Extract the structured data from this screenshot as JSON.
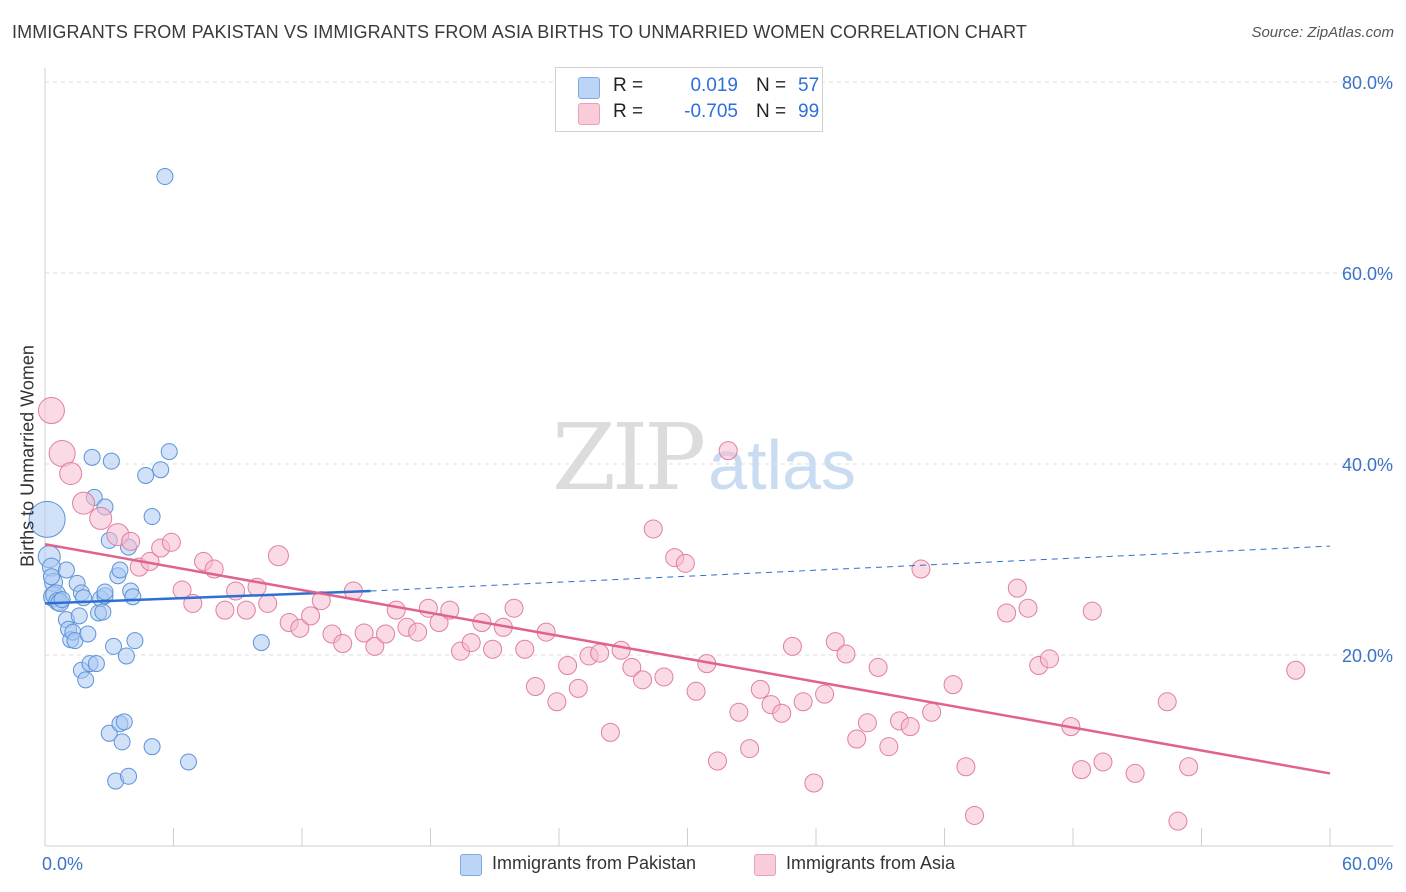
{
  "title": "IMMIGRANTS FROM PAKISTAN VS IMMIGRANTS FROM ASIA BIRTHS TO UNMARRIED WOMEN CORRELATION CHART",
  "source": "Source: ZipAtlas.com",
  "watermark": {
    "part1": "ZIP",
    "part2": "atlas"
  },
  "legend_top": [
    {
      "r_label": "R =",
      "r_value": "0.019",
      "n_label": "N =",
      "n_value": "57",
      "color": "#a9c8f2"
    },
    {
      "r_label": "R =",
      "r_value": "-0.705",
      "n_label": "N =",
      "n_value": "99",
      "color": "#f6bccd"
    }
  ],
  "colors": {
    "pakistan_fill": "#a9c8f2",
    "pakistan_stroke": "#5e93d8",
    "pakistan_line": "#2f6fcf",
    "asia_fill": "#f6bccd",
    "asia_stroke": "#e17fa0",
    "asia_line": "#e0628f",
    "tick_label": "#3b73c9",
    "grid": "#dcdcdc"
  },
  "chart_data": {
    "type": "scatter",
    "title": "IMMIGRANTS FROM PAKISTAN VS IMMIGRANTS FROM ASIA BIRTHS TO UNMARRIED WOMEN CORRELATION CHART",
    "xlabel": "",
    "ylabel": "Births to Unmarried Women",
    "xlim": [
      0,
      60
    ],
    "ylim": [
      0,
      82
    ],
    "x_tick_labels": [
      "0.0%",
      "60.0%"
    ],
    "y_ticks": [
      20,
      40,
      60,
      80
    ],
    "y_tick_labels": [
      "20.0%",
      "40.0%",
      "60.0%",
      "80.0%"
    ],
    "grid": "horizontal-dashed",
    "legend_position": "top-center",
    "series": [
      {
        "name": "Immigrants from Pakistan",
        "R": 0.019,
        "N": 57,
        "trend": {
          "x0": 0,
          "y0": 25.4,
          "x1": 15.2,
          "y1": 26.7,
          "dashed_to_x": 60,
          "dashed_to_y": 31.4
        },
        "points": [
          [
            0.1,
            34.2,
            18
          ],
          [
            0.2,
            30.3,
            11
          ],
          [
            0.3,
            29.2,
            9
          ],
          [
            0.4,
            27.6,
            9
          ],
          [
            0.4,
            26.1,
            10
          ],
          [
            0.5,
            26.3,
            10
          ],
          [
            0.6,
            25.6,
            9
          ],
          [
            0.7,
            25.5,
            9
          ],
          [
            0.8,
            25.8,
            8
          ],
          [
            1.0,
            28.9,
            8
          ],
          [
            1.0,
            23.7,
            8
          ],
          [
            1.1,
            22.7,
            8
          ],
          [
            1.2,
            21.6,
            8
          ],
          [
            1.3,
            22.4,
            8
          ],
          [
            1.4,
            21.5,
            8
          ],
          [
            1.5,
            27.5,
            8
          ],
          [
            1.6,
            24.1,
            8
          ],
          [
            1.7,
            26.5,
            8
          ],
          [
            1.7,
            18.4,
            8
          ],
          [
            1.8,
            26.0,
            8
          ],
          [
            1.9,
            17.4,
            8
          ],
          [
            2.0,
            22.2,
            8
          ],
          [
            2.1,
            19.1,
            8
          ],
          [
            2.2,
            40.7,
            8
          ],
          [
            2.3,
            36.5,
            8
          ],
          [
            2.4,
            19.1,
            8
          ],
          [
            2.5,
            24.4,
            8
          ],
          [
            2.6,
            25.9,
            8
          ],
          [
            2.7,
            24.5,
            8
          ],
          [
            2.8,
            26.2,
            8
          ],
          [
            2.8,
            26.6,
            8
          ],
          [
            2.8,
            35.5,
            8
          ],
          [
            3.0,
            11.8,
            8
          ],
          [
            3.0,
            32.0,
            8
          ],
          [
            3.1,
            40.3,
            8
          ],
          [
            3.2,
            20.9,
            8
          ],
          [
            3.3,
            6.8,
            8
          ],
          [
            3.4,
            28.3,
            8
          ],
          [
            3.5,
            28.9,
            8
          ],
          [
            3.5,
            12.8,
            8
          ],
          [
            3.6,
            10.9,
            8
          ],
          [
            3.7,
            13.0,
            8
          ],
          [
            3.8,
            19.9,
            8
          ],
          [
            3.9,
            31.3,
            8
          ],
          [
            3.9,
            7.3,
            8
          ],
          [
            4.0,
            26.7,
            8
          ],
          [
            4.1,
            26.1,
            8
          ],
          [
            4.2,
            21.5,
            8
          ],
          [
            4.7,
            38.8,
            8
          ],
          [
            5.0,
            34.5,
            8
          ],
          [
            5.0,
            10.4,
            8
          ],
          [
            5.4,
            39.4,
            8
          ],
          [
            5.6,
            70.1,
            8
          ],
          [
            5.8,
            41.3,
            8
          ],
          [
            6.7,
            8.8,
            8
          ],
          [
            10.1,
            21.3,
            8
          ],
          [
            0.3,
            28.2,
            8
          ]
        ]
      },
      {
        "name": "Immigrants from Asia",
        "R": -0.705,
        "N": 99,
        "trend": {
          "x0": 0,
          "y0": 31.6,
          "x1": 60,
          "y1": 7.6
        },
        "points": [
          [
            0.3,
            45.6,
            13
          ],
          [
            0.8,
            41.1,
            13
          ],
          [
            1.2,
            39.0,
            11
          ],
          [
            1.8,
            35.9,
            11
          ],
          [
            2.6,
            34.3,
            11
          ],
          [
            3.4,
            32.6,
            11
          ],
          [
            4.0,
            31.9,
            9
          ],
          [
            4.4,
            29.2,
            9
          ],
          [
            4.9,
            29.8,
            9
          ],
          [
            5.4,
            31.2,
            9
          ],
          [
            5.9,
            31.8,
            9
          ],
          [
            6.4,
            26.8,
            9
          ],
          [
            6.9,
            25.4,
            9
          ],
          [
            7.4,
            29.8,
            9
          ],
          [
            7.9,
            29.0,
            9
          ],
          [
            8.4,
            24.7,
            9
          ],
          [
            8.9,
            26.7,
            9
          ],
          [
            9.4,
            24.7,
            9
          ],
          [
            9.9,
            27.1,
            9
          ],
          [
            10.4,
            25.4,
            9
          ],
          [
            10.9,
            30.4,
            10
          ],
          [
            11.4,
            23.4,
            9
          ],
          [
            11.9,
            22.8,
            9
          ],
          [
            12.4,
            24.1,
            9
          ],
          [
            12.9,
            25.7,
            9
          ],
          [
            13.4,
            22.2,
            9
          ],
          [
            13.9,
            21.2,
            9
          ],
          [
            14.4,
            26.7,
            9
          ],
          [
            14.9,
            22.3,
            9
          ],
          [
            15.4,
            20.9,
            9
          ],
          [
            15.9,
            22.2,
            9
          ],
          [
            16.4,
            24.7,
            9
          ],
          [
            16.9,
            22.9,
            9
          ],
          [
            17.4,
            22.4,
            9
          ],
          [
            17.9,
            24.9,
            9
          ],
          [
            18.4,
            23.4,
            9
          ],
          [
            18.9,
            24.7,
            9
          ],
          [
            19.4,
            20.4,
            9
          ],
          [
            19.9,
            21.3,
            9
          ],
          [
            20.4,
            23.4,
            9
          ],
          [
            20.9,
            20.6,
            9
          ],
          [
            21.4,
            22.9,
            9
          ],
          [
            21.9,
            24.9,
            9
          ],
          [
            22.4,
            20.6,
            9
          ],
          [
            22.9,
            16.7,
            9
          ],
          [
            23.4,
            22.4,
            9
          ],
          [
            23.9,
            15.1,
            9
          ],
          [
            24.4,
            18.9,
            9
          ],
          [
            24.9,
            16.5,
            9
          ],
          [
            25.4,
            19.9,
            9
          ],
          [
            25.9,
            20.2,
            9
          ],
          [
            26.4,
            11.9,
            9
          ],
          [
            26.9,
            20.5,
            9
          ],
          [
            27.4,
            18.7,
            9
          ],
          [
            27.9,
            17.4,
            9
          ],
          [
            28.4,
            33.2,
            9
          ],
          [
            28.9,
            17.7,
            9
          ],
          [
            29.4,
            30.2,
            9
          ],
          [
            29.9,
            29.6,
            9
          ],
          [
            30.4,
            16.2,
            9
          ],
          [
            30.9,
            19.1,
            9
          ],
          [
            31.4,
            8.9,
            9
          ],
          [
            31.9,
            41.4,
            9
          ],
          [
            32.4,
            14.0,
            9
          ],
          [
            32.9,
            10.2,
            9
          ],
          [
            33.4,
            16.4,
            9
          ],
          [
            33.9,
            14.8,
            9
          ],
          [
            34.4,
            13.9,
            9
          ],
          [
            34.9,
            20.9,
            9
          ],
          [
            35.4,
            15.1,
            9
          ],
          [
            35.9,
            6.6,
            9
          ],
          [
            36.4,
            15.9,
            9
          ],
          [
            36.9,
            21.4,
            9
          ],
          [
            37.4,
            20.1,
            9
          ],
          [
            37.9,
            11.2,
            9
          ],
          [
            38.4,
            12.9,
            9
          ],
          [
            38.9,
            18.7,
            9
          ],
          [
            39.4,
            10.4,
            9
          ],
          [
            39.9,
            13.1,
            9
          ],
          [
            40.4,
            12.5,
            9
          ],
          [
            40.9,
            29.0,
            9
          ],
          [
            41.4,
            14.0,
            9
          ],
          [
            42.4,
            16.9,
            9
          ],
          [
            43.0,
            8.3,
            9
          ],
          [
            43.4,
            3.2,
            9
          ],
          [
            44.9,
            24.4,
            9
          ],
          [
            45.4,
            27.0,
            9
          ],
          [
            45.9,
            24.9,
            9
          ],
          [
            46.4,
            18.9,
            9
          ],
          [
            46.9,
            19.6,
            9
          ],
          [
            47.9,
            12.5,
            9
          ],
          [
            48.4,
            8.0,
            9
          ],
          [
            48.9,
            24.6,
            9
          ],
          [
            49.4,
            8.8,
            9
          ],
          [
            50.9,
            7.6,
            9
          ],
          [
            52.4,
            15.1,
            9
          ],
          [
            52.9,
            2.6,
            9
          ],
          [
            53.4,
            8.3,
            9
          ],
          [
            58.4,
            18.4,
            9
          ]
        ]
      }
    ]
  },
  "legend_bottom": [
    "Immigrants from Pakistan",
    "Immigrants from Asia"
  ]
}
